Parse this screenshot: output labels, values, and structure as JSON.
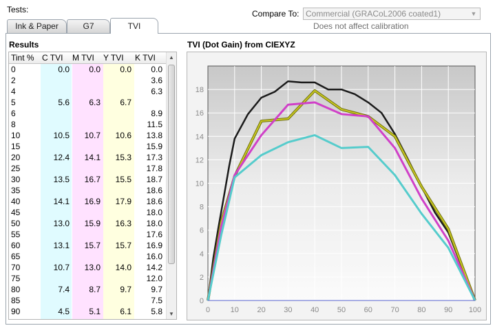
{
  "header": {
    "tests_label": "Tests:",
    "tabs": [
      {
        "label": "Ink & Paper"
      },
      {
        "label": "G7"
      },
      {
        "label": "TVI"
      }
    ],
    "active_tab": "TVI",
    "compare_label": "Compare To:",
    "compare_value": "Commercial (GRACoL2006 coated1)",
    "compare_note": "Does not affect calibration"
  },
  "results": {
    "title": "Results",
    "columns": [
      "Tint %",
      "C TVI",
      "M TVI",
      "Y TVI",
      "K TVI"
    ],
    "rows": [
      [
        "0",
        "0.0",
        "0.0",
        "0.0",
        "0.0"
      ],
      [
        "2",
        "",
        "",
        "",
        "3.6"
      ],
      [
        "4",
        "",
        "",
        "",
        "6.3"
      ],
      [
        "5",
        "5.6",
        "6.3",
        "6.7",
        ""
      ],
      [
        "6",
        "",
        "",
        "",
        "8.9"
      ],
      [
        "8",
        "",
        "",
        "",
        "11.5"
      ],
      [
        "10",
        "10.5",
        "10.7",
        "10.6",
        "13.8"
      ],
      [
        "15",
        "",
        "",
        "",
        "15.9"
      ],
      [
        "20",
        "12.4",
        "14.1",
        "15.3",
        "17.3"
      ],
      [
        "25",
        "",
        "",
        "",
        "17.8"
      ],
      [
        "30",
        "13.5",
        "16.7",
        "15.5",
        "18.7"
      ],
      [
        "35",
        "",
        "",
        "",
        "18.6"
      ],
      [
        "40",
        "14.1",
        "16.9",
        "17.9",
        "18.6"
      ],
      [
        "45",
        "",
        "",
        "",
        "18.0"
      ],
      [
        "50",
        "13.0",
        "15.9",
        "16.3",
        "18.0"
      ],
      [
        "55",
        "",
        "",
        "",
        "17.6"
      ],
      [
        "60",
        "13.1",
        "15.7",
        "15.7",
        "16.9"
      ],
      [
        "65",
        "",
        "",
        "",
        "16.0"
      ],
      [
        "70",
        "10.7",
        "13.0",
        "14.0",
        "14.2"
      ],
      [
        "75",
        "",
        "",
        "",
        "12.0"
      ],
      [
        "80",
        "7.4",
        "8.7",
        "9.7",
        "9.7"
      ],
      [
        "85",
        "",
        "",
        "",
        "7.5"
      ],
      [
        "90",
        "4.5",
        "5.1",
        "6.1",
        "5.8"
      ]
    ],
    "column_colors": {
      "c": "#e0fbff",
      "m": "#ffe2ff",
      "y": "#ffffe0"
    }
  },
  "chart_data": {
    "type": "line",
    "title": "TVI (Dot Gain) from CIEXYZ",
    "xlim": [
      0,
      100
    ],
    "ylim": [
      0,
      20
    ],
    "x_ticks": [
      "0",
      "10",
      "20",
      "30",
      "40",
      "50",
      "60",
      "70",
      "80",
      "90",
      "100"
    ],
    "y_ticks": [
      "0",
      "2",
      "4",
      "6",
      "8",
      "10",
      "12",
      "14",
      "16",
      "18"
    ],
    "grid": true,
    "series": [
      {
        "color": "#1a1a1a",
        "points": [
          [
            0,
            0
          ],
          [
            2,
            3.6
          ],
          [
            4,
            6.3
          ],
          [
            6,
            8.9
          ],
          [
            8,
            11.5
          ],
          [
            10,
            13.8
          ],
          [
            15,
            15.9
          ],
          [
            20,
            17.3
          ],
          [
            25,
            17.8
          ],
          [
            30,
            18.7
          ],
          [
            35,
            18.6
          ],
          [
            40,
            18.6
          ],
          [
            45,
            18.0
          ],
          [
            50,
            18.0
          ],
          [
            55,
            17.6
          ],
          [
            60,
            16.9
          ],
          [
            65,
            16.0
          ],
          [
            70,
            14.2
          ],
          [
            75,
            12.0
          ],
          [
            80,
            9.7
          ],
          [
            85,
            7.5
          ],
          [
            90,
            5.8
          ],
          [
            100,
            0
          ]
        ]
      },
      {
        "color": "#c8c820",
        "points": [
          [
            0,
            0
          ],
          [
            5,
            6.7
          ],
          [
            10,
            10.6
          ],
          [
            20,
            15.3
          ],
          [
            30,
            15.5
          ],
          [
            40,
            17.9
          ],
          [
            50,
            16.3
          ],
          [
            60,
            15.7
          ],
          [
            70,
            14.0
          ],
          [
            80,
            9.7
          ],
          [
            90,
            6.1
          ],
          [
            100,
            0
          ]
        ]
      },
      {
        "color": "#d040c8",
        "points": [
          [
            0,
            0
          ],
          [
            5,
            6.3
          ],
          [
            10,
            10.7
          ],
          [
            20,
            14.1
          ],
          [
            30,
            16.7
          ],
          [
            40,
            16.9
          ],
          [
            50,
            15.9
          ],
          [
            60,
            15.7
          ],
          [
            70,
            13.0
          ],
          [
            80,
            8.7
          ],
          [
            90,
            5.1
          ],
          [
            100,
            0
          ]
        ]
      },
      {
        "color": "#55cccc",
        "points": [
          [
            0,
            0
          ],
          [
            5,
            5.6
          ],
          [
            10,
            10.5
          ],
          [
            20,
            12.4
          ],
          [
            30,
            13.5
          ],
          [
            40,
            14.1
          ],
          [
            50,
            13.0
          ],
          [
            60,
            13.1
          ],
          [
            70,
            10.7
          ],
          [
            80,
            7.4
          ],
          [
            90,
            4.5
          ],
          [
            100,
            0
          ]
        ]
      }
    ]
  }
}
